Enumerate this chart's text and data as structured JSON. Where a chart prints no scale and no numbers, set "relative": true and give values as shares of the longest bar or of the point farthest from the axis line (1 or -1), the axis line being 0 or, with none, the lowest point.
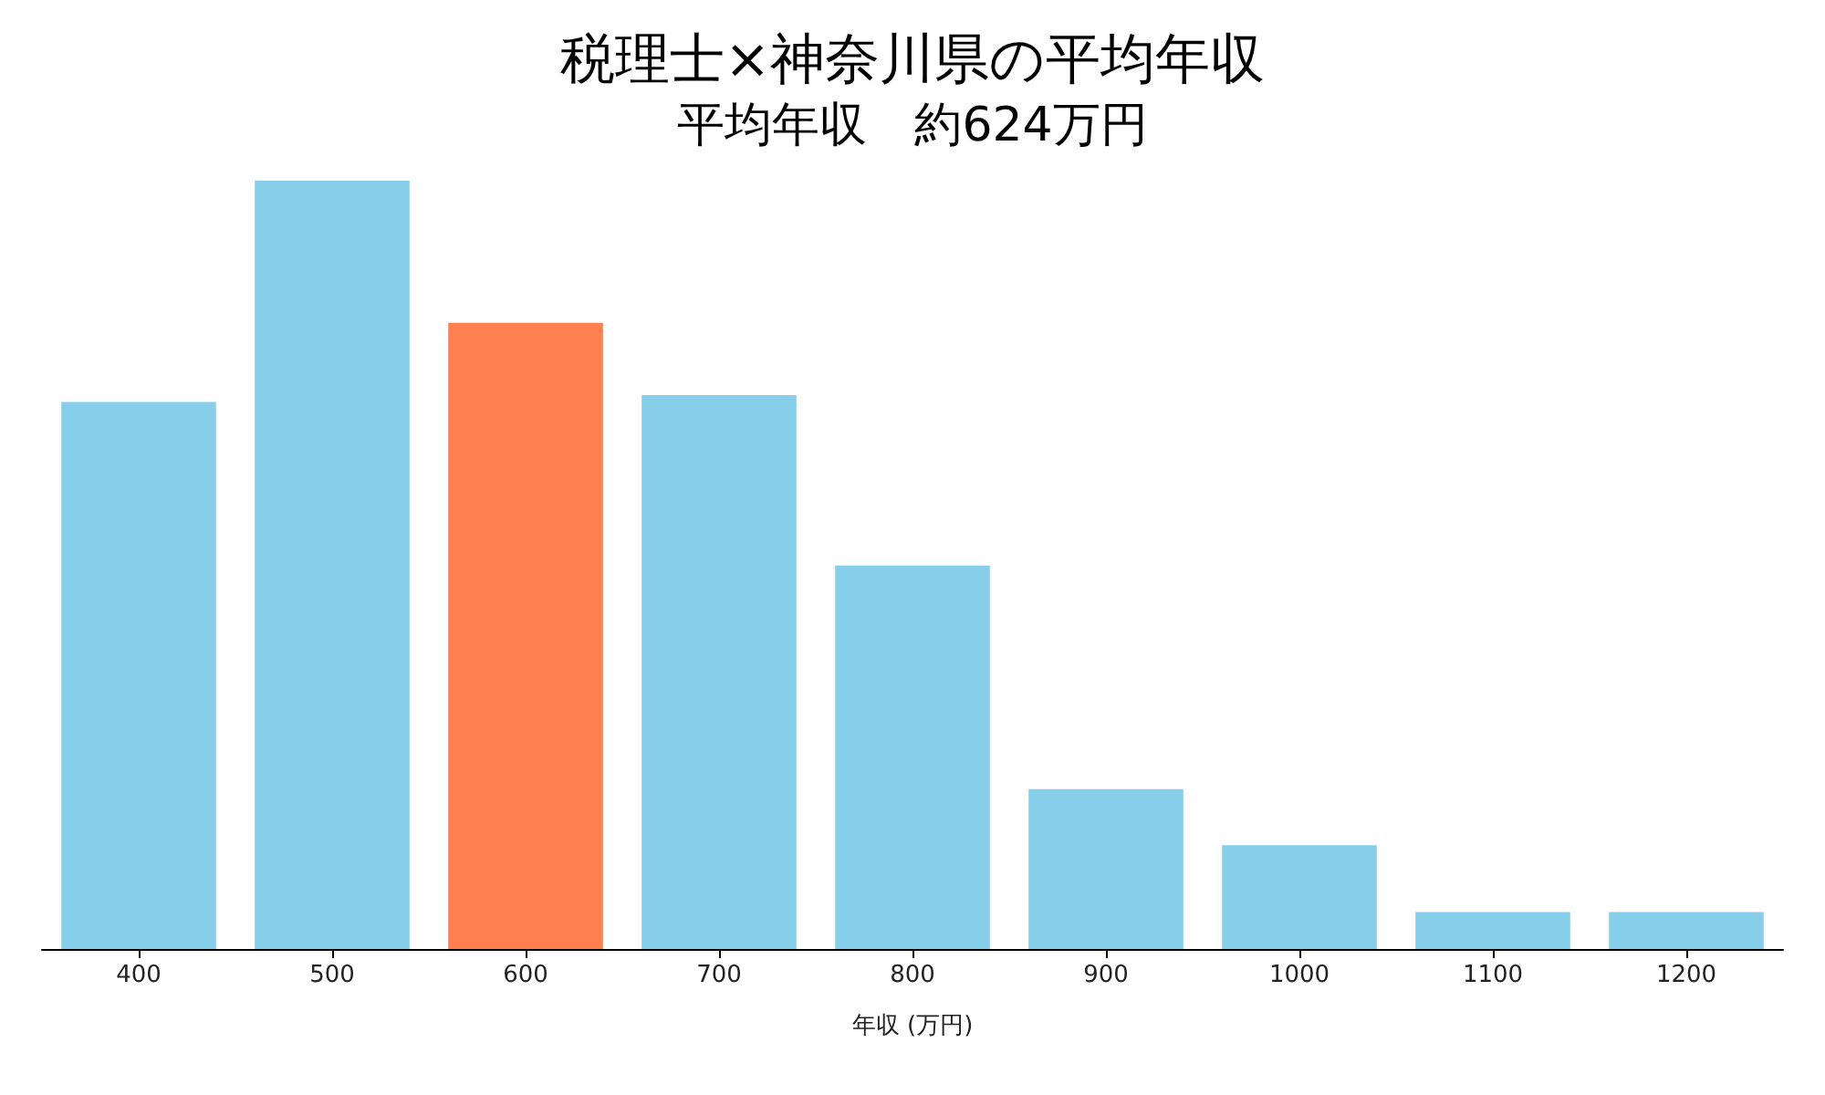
{
  "chart_data": {
    "type": "bar",
    "title": "税理士×神奈川県の平均年収",
    "subtitle": "平均年収　約624万円",
    "xlabel": "年収 (万円)",
    "categories": [
      "400",
      "500",
      "600",
      "700",
      "800",
      "900",
      "1000",
      "1100",
      "1200"
    ],
    "values": [
      0.712,
      1,
      0.815,
      0.721,
      0.499,
      0.208,
      0.135,
      0.048,
      0.048
    ],
    "colors": [
      "#87ceeb",
      "#87ceeb",
      "#ff7f50",
      "#87ceeb",
      "#87ceeb",
      "#87ceeb",
      "#87ceeb",
      "#87ceeb",
      "#87ceeb"
    ],
    "relative": true
  }
}
